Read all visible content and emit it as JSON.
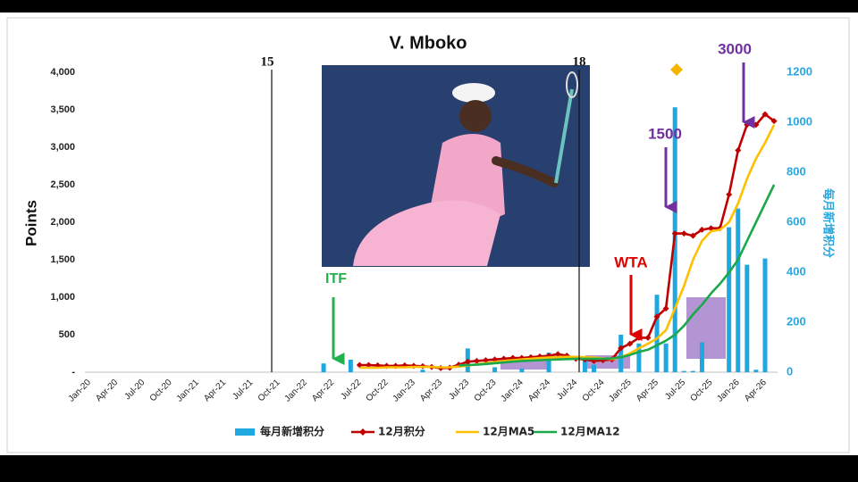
{
  "chart_data": {
    "type": "combo",
    "title": "V. Mboko",
    "ylabel": "Points",
    "y2label": "每月新增积分",
    "categories": [
      "Jan-20",
      null,
      null,
      "Apr-20",
      null,
      null,
      "Jul-20",
      null,
      null,
      "Oct-20",
      null,
      null,
      "Jan-21",
      null,
      null,
      "Apr-21",
      null,
      null,
      "Jul-21",
      null,
      null,
      "Oct-21",
      null,
      null,
      "Jan-22",
      null,
      null,
      "Apr-22",
      null,
      null,
      "Jul-22",
      null,
      null,
      "Oct-22",
      null,
      null,
      "Jan-23",
      null,
      null,
      "Apr-23",
      null,
      null,
      "Jul-23",
      null,
      null,
      "Oct-23",
      null,
      null,
      "Jan-24",
      null,
      null,
      "Apr-24",
      null,
      null,
      "Jul-24",
      null,
      null,
      "Oct-24",
      null,
      null,
      "Jan-25",
      null,
      null,
      "Apr-25",
      null,
      null,
      "Jul-25",
      null,
      null,
      "Oct-25",
      null,
      null,
      "Jan-26",
      null,
      null,
      "Apr-26",
      null
    ],
    "ylim": [
      0,
      4000
    ],
    "yticks": [
      {
        "value": 0,
        "label": "-"
      },
      500,
      {
        "value": 1000,
        "label": "1,000"
      },
      {
        "value": 1500,
        "label": "1,500"
      },
      {
        "value": 2000,
        "label": "2,000"
      },
      {
        "value": 2500,
        "label": "2,500"
      },
      {
        "value": 3000,
        "label": "3,000"
      },
      {
        "value": 3500,
        "label": "3,500"
      },
      {
        "value": 4000,
        "label": "4,000"
      }
    ],
    "y2lim": [
      0,
      1200
    ],
    "y2ticks": [
      0,
      200,
      400,
      600,
      800,
      1000,
      1200
    ],
    "series": [
      {
        "name": "每月新增积分",
        "type": "bar",
        "axis": "y2",
        "color": "#1fa7e0",
        "values": [
          0,
          0,
          0,
          0,
          0,
          0,
          0,
          0,
          0,
          0,
          0,
          0,
          0,
          0,
          0,
          0,
          0,
          0,
          0,
          0,
          0,
          0,
          0,
          0,
          0,
          0,
          35,
          0,
          0,
          50,
          0,
          0,
          0,
          0,
          0,
          0,
          0,
          10,
          0,
          0,
          0,
          0,
          95,
          0,
          0,
          20,
          0,
          0,
          15,
          0,
          0,
          78,
          0,
          0,
          0,
          60,
          30,
          0,
          0,
          150,
          0,
          115,
          0,
          310,
          115,
          1060,
          5,
          5,
          120,
          0,
          0,
          580,
          655,
          430,
          10,
          455,
          0
        ]
      },
      {
        "name": "12月积分",
        "type": "line",
        "color": "#c00000",
        "values": [
          null,
          null,
          null,
          null,
          null,
          null,
          null,
          null,
          null,
          null,
          null,
          null,
          null,
          null,
          null,
          null,
          null,
          null,
          null,
          null,
          null,
          null,
          null,
          null,
          null,
          null,
          null,
          null,
          null,
          null,
          95,
          95,
          90,
          85,
          85,
          90,
          85,
          80,
          70,
          55,
          60,
          100,
          140,
          150,
          160,
          170,
          180,
          190,
          190,
          200,
          210,
          220,
          240,
          220,
          180,
          170,
          150,
          160,
          170,
          320,
          380,
          460,
          460,
          740,
          850,
          1850,
          1850,
          1820,
          1900,
          1920,
          1920,
          2370,
          2960,
          3300,
          3300,
          3440,
          3350
        ]
      },
      {
        "name": "12月MA5",
        "type": "line",
        "color": "#ffc000",
        "values": [
          null,
          null,
          null,
          null,
          null,
          null,
          null,
          null,
          null,
          null,
          null,
          null,
          null,
          null,
          null,
          null,
          null,
          null,
          null,
          null,
          null,
          null,
          null,
          null,
          null,
          null,
          null,
          null,
          null,
          null,
          60,
          60,
          60,
          65,
          65,
          65,
          70,
          70,
          70,
          65,
          65,
          75,
          90,
          105,
          120,
          135,
          150,
          160,
          170,
          180,
          190,
          195,
          200,
          205,
          205,
          200,
          195,
          185,
          175,
          200,
          250,
          320,
          380,
          450,
          560,
          850,
          1150,
          1500,
          1750,
          1880,
          1900,
          2000,
          2250,
          2580,
          2850,
          3060,
          3300
        ]
      },
      {
        "name": "12月MA12",
        "type": "line",
        "color": "#1aa84a",
        "values": [
          null,
          null,
          null,
          null,
          null,
          null,
          null,
          null,
          null,
          null,
          null,
          null,
          null,
          null,
          null,
          null,
          null,
          null,
          null,
          null,
          null,
          null,
          null,
          null,
          null,
          null,
          null,
          null,
          null,
          null,
          null,
          null,
          null,
          null,
          null,
          null,
          null,
          null,
          null,
          null,
          null,
          90,
          95,
          100,
          110,
          120,
          130,
          140,
          150,
          155,
          160,
          165,
          170,
          175,
          180,
          180,
          180,
          180,
          185,
          200,
          230,
          270,
          300,
          360,
          420,
          500,
          620,
          770,
          900,
          1050,
          1180,
          1330,
          1500,
          1750,
          2000,
          2250,
          2500
        ]
      }
    ],
    "annotations": [
      "15",
      "18",
      "ITF",
      "WTA",
      "1500",
      "3000"
    ]
  }
}
